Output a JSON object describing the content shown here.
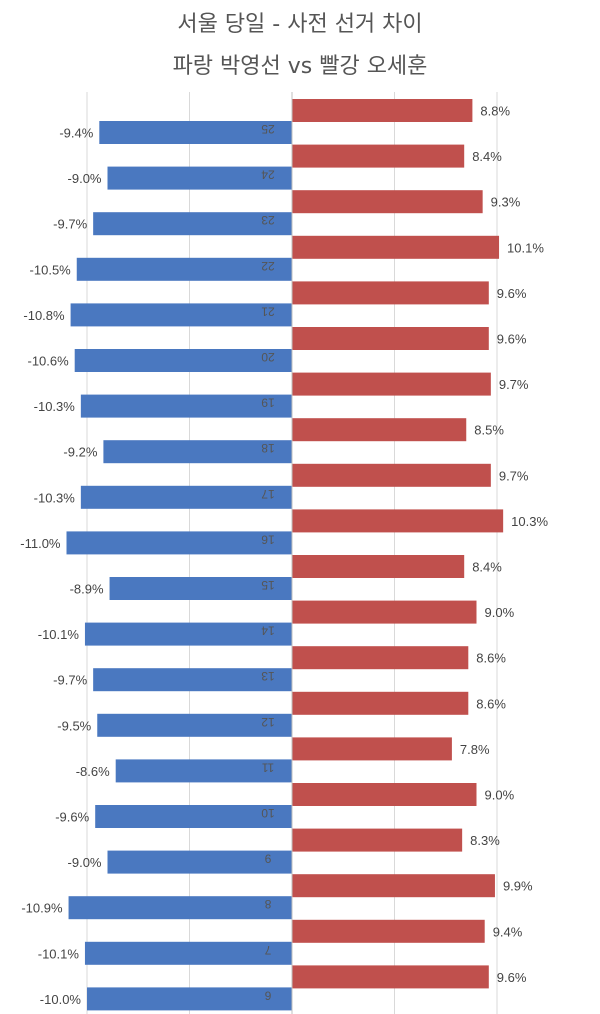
{
  "chart_data": {
    "type": "bar",
    "title": "서울 당일 - 사전 선거 차이",
    "subtitle": "파랑 박영선 vs 빨강 오세훈",
    "categories": [
      "25",
      "24",
      "23",
      "22",
      "21",
      "20",
      "19",
      "18",
      "17",
      "16",
      "15",
      "14",
      "13",
      "12",
      "11",
      "10",
      "9",
      "8",
      "7",
      "6"
    ],
    "series": [
      {
        "color": "#4a78c0",
        "values": [
          -9.4,
          -9.0,
          -9.7,
          -10.5,
          -10.8,
          -10.6,
          -10.3,
          -9.2,
          -10.3,
          -11.0,
          -8.9,
          -10.1,
          -9.7,
          -9.5,
          -8.6,
          -9.6,
          -9.0,
          -10.9,
          -10.1,
          -10.0
        ]
      },
      {
        "color": "#c0504d",
        "values": [
          8.8,
          8.4,
          9.3,
          10.1,
          9.6,
          9.6,
          9.7,
          8.5,
          9.7,
          10.3,
          8.4,
          9.0,
          8.6,
          8.6,
          7.8,
          9.0,
          8.3,
          9.9,
          9.4,
          9.6
        ]
      }
    ],
    "grid": true,
    "value_labels": true
  }
}
